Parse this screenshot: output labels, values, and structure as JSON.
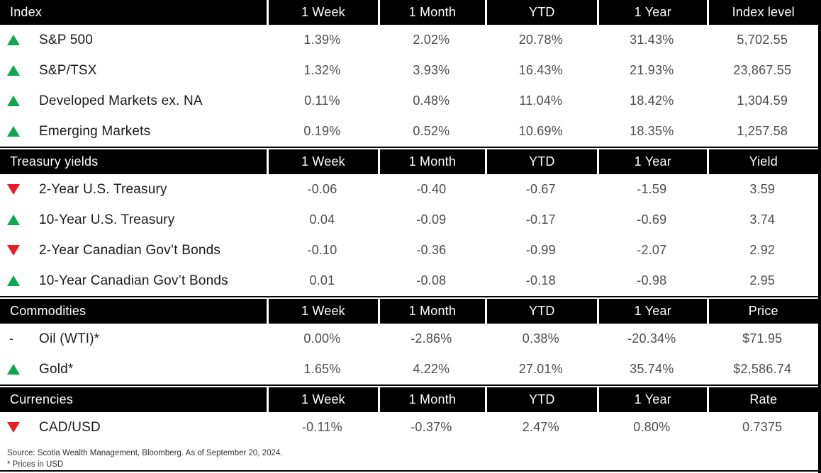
{
  "colors": {
    "up": "#0ca750",
    "down": "#ec1c24",
    "flat": "#333333",
    "header_bg": "#000000",
    "header_text": "#ffffff",
    "value_text": "#4d4d4d",
    "label_text": "#1a1a1a",
    "bar": "#000000"
  },
  "sections": [
    {
      "name": "index",
      "header": [
        "Index",
        "1 Week",
        "1 Month",
        "YTD",
        "1 Year",
        "Index level"
      ],
      "rows": [
        {
          "indicator": "up",
          "label": "S&P 500",
          "values": [
            "1.39%",
            "2.02%",
            "20.78%",
            "31.43%",
            "5,702.55"
          ]
        },
        {
          "indicator": "up",
          "label": "S&P/TSX",
          "values": [
            "1.32%",
            "3.93%",
            "16.43%",
            "21.93%",
            "23,867.55"
          ]
        },
        {
          "indicator": "up",
          "label": "Developed Markets ex. NA",
          "values": [
            "0.11%",
            "0.48%",
            "11.04%",
            "18.42%",
            "1,304.59"
          ]
        },
        {
          "indicator": "up",
          "label": "Emerging Markets",
          "values": [
            "0.19%",
            "0.52%",
            "10.69%",
            "18.35%",
            "1,257.58"
          ]
        }
      ]
    },
    {
      "name": "treasury-yields",
      "header": [
        "Treasury yields",
        "1 Week",
        "1 Month",
        "YTD",
        "1 Year",
        "Yield"
      ],
      "rows": [
        {
          "indicator": "down",
          "label": "2-Year U.S. Treasury",
          "values": [
            "-0.06",
            "-0.40",
            "-0.67",
            "-1.59",
            "3.59"
          ]
        },
        {
          "indicator": "up",
          "label": "10-Year U.S. Treasury",
          "values": [
            "0.04",
            "-0.09",
            "-0.17",
            "-0.69",
            "3.74"
          ]
        },
        {
          "indicator": "down",
          "label": "2-Year Canadian Gov’t Bonds",
          "values": [
            "-0.10",
            "-0.36",
            "-0.99",
            "-2.07",
            "2.92"
          ]
        },
        {
          "indicator": "up",
          "label": "10-Year Canadian Gov’t Bonds",
          "values": [
            "0.01",
            "-0.08",
            "-0.18",
            "-0.98",
            "2.95"
          ]
        }
      ]
    },
    {
      "name": "commodities",
      "header": [
        "Commodities",
        "1 Week",
        "1 Month",
        "YTD",
        "1 Year",
        "Price"
      ],
      "rows": [
        {
          "indicator": "flat",
          "label": "Oil (WTI)*",
          "values": [
            "0.00%",
            "-2.86%",
            "0.38%",
            "-20.34%",
            "$71.95"
          ]
        },
        {
          "indicator": "up",
          "label": "Gold*",
          "values": [
            "1.65%",
            "4.22%",
            "27.01%",
            "35.74%",
            "$2,586.74"
          ]
        }
      ]
    },
    {
      "name": "currencies",
      "header": [
        "Currencies",
        "1 Week",
        "1 Month",
        "YTD",
        "1 Year",
        "Rate"
      ],
      "rows": [
        {
          "indicator": "down",
          "label": "CAD/USD",
          "values": [
            "-0.11%",
            "-0.37%",
            "2.47%",
            "0.80%",
            "0.7375"
          ]
        }
      ]
    }
  ],
  "footer": {
    "source": "Source: Scotia Wealth Management, Bloomberg. As of September 20, 2024.",
    "note": "* Prices in USD"
  },
  "indicator_icons": {
    "up": "up-triangle-icon",
    "down": "down-triangle-icon",
    "flat": "flat-dash-icon"
  },
  "flat_glyph": "-"
}
